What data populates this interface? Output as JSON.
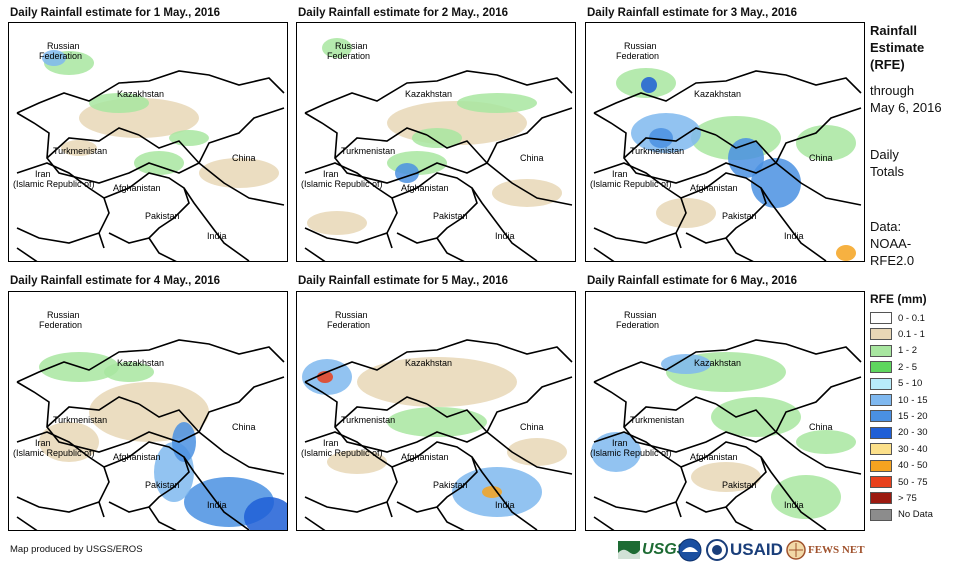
{
  "panels": [
    {
      "title": "Daily Rainfall estimate for 1 May., 2016"
    },
    {
      "title": "Daily Rainfall estimate for 2 May., 2016"
    },
    {
      "title": "Daily Rainfall estimate for 3 May., 2016"
    },
    {
      "title": "Daily Rainfall estimate for 4 May., 2016"
    },
    {
      "title": "Daily Rainfall estimate for 5 May., 2016"
    },
    {
      "title": "Daily Rainfall estimate for 6 May., 2016"
    }
  ],
  "country_labels": {
    "russia": "Russian\nFederation",
    "kazakhstan": "Kazakhstan",
    "turkmenistan": "Turkmenistan",
    "china": "China",
    "iran": "Iran\n(Islamic Republic of)",
    "afghanistan": "Afghanistan",
    "pakistan": "Pakistan",
    "india": "India"
  },
  "sidebar": {
    "title_lines": [
      "Rainfall",
      "Estimate",
      "(RFE)"
    ],
    "through_lines": [
      "through",
      "May 6, 2016"
    ],
    "daily_lines": [
      "Daily",
      "Totals"
    ],
    "data_lines": [
      "Data:",
      "NOAA-",
      "RFE2.0"
    ]
  },
  "legend": {
    "title": "RFE (mm)",
    "items": [
      {
        "label": "0 - 0.1",
        "color": "#ffffff"
      },
      {
        "label": "0.1 - 1",
        "color": "#e8d7b6"
      },
      {
        "label": "1 - 2",
        "color": "#a8e6a0"
      },
      {
        "label": "2 - 5",
        "color": "#5ed65e"
      },
      {
        "label": "5 - 10",
        "color": "#b8ecfa"
      },
      {
        "label": "10 - 15",
        "color": "#7fb8ef"
      },
      {
        "label": "15 - 20",
        "color": "#4a90e2"
      },
      {
        "label": "20 - 30",
        "color": "#1f5fd6"
      },
      {
        "label": "30 - 40",
        "color": "#fce08a"
      },
      {
        "label": "40 - 50",
        "color": "#f5a320"
      },
      {
        "label": "50 - 75",
        "color": "#e8401c"
      },
      {
        "label": "> 75",
        "color": "#9c1a10"
      },
      {
        "label": "No Data",
        "color": "#8c8c8c"
      }
    ]
  },
  "footer": {
    "credit": "Map produced by USGS/EROS"
  },
  "logos": {
    "usgs": "USGS",
    "usaid": "USAID",
    "fewsnet": "FEWS NET"
  }
}
